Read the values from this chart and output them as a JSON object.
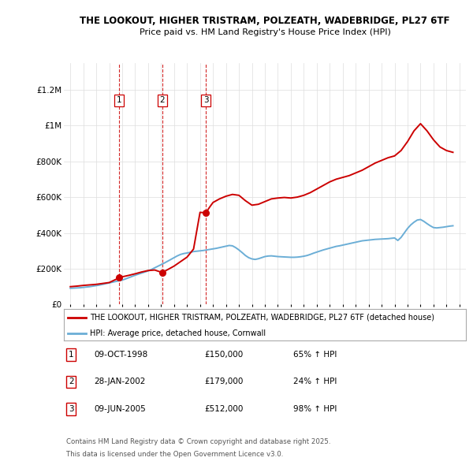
{
  "title_line1": "THE LOOKOUT, HIGHER TRISTRAM, POLZEATH, WADEBRIDGE, PL27 6TF",
  "title_line2": "Price paid vs. HM Land Registry's House Price Index (HPI)",
  "hpi_label": "HPI: Average price, detached house, Cornwall",
  "property_label": "THE LOOKOUT, HIGHER TRISTRAM, POLZEATH, WADEBRIDGE, PL27 6TF (detached house)",
  "hpi_color": "#6baed6",
  "property_color": "#cc0000",
  "vline_color": "#cc0000",
  "background_color": "#ffffff",
  "grid_color": "#dddddd",
  "transactions": [
    {
      "num": 1,
      "date": "09-OCT-1998",
      "price": 150000,
      "hpi_pct": "65% ↑ HPI",
      "x": 1998.78
    },
    {
      "num": 2,
      "date": "28-JAN-2002",
      "price": 179000,
      "hpi_pct": "24% ↑ HPI",
      "x": 2002.08
    },
    {
      "num": 3,
      "date": "09-JUN-2005",
      "price": 512000,
      "hpi_pct": "98% ↑ HPI",
      "x": 2005.44
    }
  ],
  "ylim": [
    0,
    1350000
  ],
  "xlim": [
    1994.5,
    2025.5
  ],
  "yticks": [
    0,
    200000,
    400000,
    600000,
    800000,
    1000000,
    1200000
  ],
  "ytick_labels": [
    "£0",
    "£200K",
    "£400K",
    "£600K",
    "£800K",
    "£1M",
    "£1.2M"
  ],
  "xticks": [
    1995,
    1996,
    1997,
    1998,
    1999,
    2000,
    2001,
    2002,
    2003,
    2004,
    2005,
    2006,
    2007,
    2008,
    2009,
    2010,
    2011,
    2012,
    2013,
    2014,
    2015,
    2016,
    2017,
    2018,
    2019,
    2020,
    2021,
    2022,
    2023,
    2024,
    2025
  ],
  "footnote_line1": "Contains HM Land Registry data © Crown copyright and database right 2025.",
  "footnote_line2": "This data is licensed under the Open Government Licence v3.0.",
  "hpi_data_x": [
    1995.0,
    1995.25,
    1995.5,
    1995.75,
    1996.0,
    1996.25,
    1996.5,
    1996.75,
    1997.0,
    1997.25,
    1997.5,
    1997.75,
    1998.0,
    1998.25,
    1998.5,
    1998.75,
    1999.0,
    1999.25,
    1999.5,
    1999.75,
    2000.0,
    2000.25,
    2000.5,
    2000.75,
    2001.0,
    2001.25,
    2001.5,
    2001.75,
    2002.0,
    2002.25,
    2002.5,
    2002.75,
    2003.0,
    2003.25,
    2003.5,
    2003.75,
    2004.0,
    2004.25,
    2004.5,
    2004.75,
    2005.0,
    2005.25,
    2005.5,
    2005.75,
    2006.0,
    2006.25,
    2006.5,
    2006.75,
    2007.0,
    2007.25,
    2007.5,
    2007.75,
    2008.0,
    2008.25,
    2008.5,
    2008.75,
    2009.0,
    2009.25,
    2009.5,
    2009.75,
    2010.0,
    2010.25,
    2010.5,
    2010.75,
    2011.0,
    2011.25,
    2011.5,
    2011.75,
    2012.0,
    2012.25,
    2012.5,
    2012.75,
    2013.0,
    2013.25,
    2013.5,
    2013.75,
    2014.0,
    2014.25,
    2014.5,
    2014.75,
    2015.0,
    2015.25,
    2015.5,
    2015.75,
    2016.0,
    2016.25,
    2016.5,
    2016.75,
    2017.0,
    2017.25,
    2017.5,
    2017.75,
    2018.0,
    2018.25,
    2018.5,
    2018.75,
    2019.0,
    2019.25,
    2019.5,
    2019.75,
    2020.0,
    2020.25,
    2020.5,
    2020.75,
    2021.0,
    2021.25,
    2021.5,
    2021.75,
    2022.0,
    2022.25,
    2022.5,
    2022.75,
    2023.0,
    2023.25,
    2023.5,
    2023.75,
    2024.0,
    2024.25,
    2024.5
  ],
  "hpi_data_y": [
    91000,
    92000,
    93000,
    94000,
    96000,
    98000,
    100000,
    103000,
    106000,
    109000,
    113000,
    117000,
    121000,
    125000,
    129000,
    133000,
    137000,
    143000,
    150000,
    157000,
    164000,
    170000,
    176000,
    182000,
    188000,
    196000,
    205000,
    214000,
    223000,
    232000,
    242000,
    252000,
    262000,
    272000,
    280000,
    285000,
    288000,
    292000,
    296000,
    298000,
    300000,
    302000,
    305000,
    308000,
    311000,
    314000,
    318000,
    322000,
    326000,
    330000,
    328000,
    318000,
    305000,
    290000,
    274000,
    262000,
    255000,
    252000,
    256000,
    262000,
    268000,
    271000,
    272000,
    270000,
    268000,
    267000,
    266000,
    265000,
    264000,
    264000,
    265000,
    267000,
    270000,
    274000,
    280000,
    287000,
    293000,
    299000,
    305000,
    310000,
    315000,
    320000,
    325000,
    328000,
    332000,
    336000,
    340000,
    344000,
    348000,
    352000,
    356000,
    358000,
    360000,
    362000,
    364000,
    365000,
    366000,
    367000,
    368000,
    370000,
    372000,
    358000,
    375000,
    400000,
    425000,
    445000,
    460000,
    472000,
    475000,
    465000,
    452000,
    440000,
    430000,
    428000,
    430000,
    432000,
    435000,
    438000,
    440000
  ],
  "property_data_x": [
    1995.0,
    1995.5,
    1996.0,
    1996.5,
    1997.0,
    1997.5,
    1998.0,
    1998.78,
    1999.0,
    1999.5,
    2000.0,
    2000.5,
    2001.0,
    2001.5,
    2002.08,
    2002.5,
    2003.0,
    2003.5,
    2004.0,
    2004.5,
    2005.0,
    2005.44,
    2005.75,
    2006.0,
    2006.5,
    2007.0,
    2007.5,
    2008.0,
    2008.5,
    2009.0,
    2009.5,
    2010.0,
    2010.5,
    2011.0,
    2011.5,
    2012.0,
    2012.5,
    2013.0,
    2013.5,
    2014.0,
    2014.5,
    2015.0,
    2015.5,
    2016.0,
    2016.5,
    2017.0,
    2017.5,
    2018.0,
    2018.5,
    2019.0,
    2019.5,
    2020.0,
    2020.5,
    2021.0,
    2021.5,
    2022.0,
    2022.5,
    2023.0,
    2023.5,
    2024.0,
    2024.5
  ],
  "property_data_y": [
    100000,
    103000,
    107000,
    110000,
    113000,
    118000,
    123000,
    150000,
    155000,
    163000,
    172000,
    182000,
    190000,
    193000,
    179000,
    195000,
    215000,
    240000,
    265000,
    310000,
    515000,
    512000,
    545000,
    570000,
    590000,
    605000,
    615000,
    610000,
    580000,
    555000,
    560000,
    575000,
    590000,
    595000,
    598000,
    595000,
    600000,
    610000,
    625000,
    645000,
    665000,
    685000,
    700000,
    710000,
    720000,
    735000,
    750000,
    770000,
    790000,
    805000,
    820000,
    830000,
    860000,
    910000,
    970000,
    1010000,
    970000,
    920000,
    880000,
    860000,
    850000
  ]
}
